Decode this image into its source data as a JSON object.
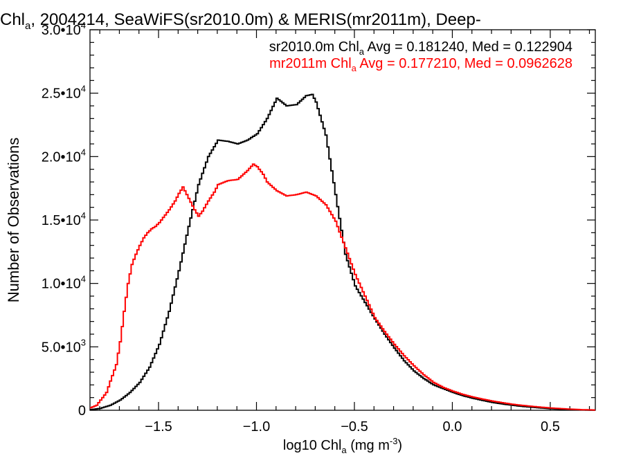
{
  "chart_data": {
    "type": "line",
    "title": {
      "prefix": "Chl",
      "sub": "a",
      "rest": ", 2004214, SeaWiFS(sr2010.0m) & MERIS(mr2011m), Deep-"
    },
    "xlabel": {
      "prefix": "log10 Chl",
      "sub": "a",
      "mid": " (mg m",
      "sup": "-3",
      "suffix": ")"
    },
    "ylabel": "Number of Observations",
    "xlim": [
      -1.85,
      0.73
    ],
    "ylim": [
      0,
      30000
    ],
    "grid": false,
    "legend_position": "top-right",
    "x_ticks": [
      {
        "value": -1.5,
        "label": "−1.5"
      },
      {
        "value": -1.0,
        "label": "−1.0"
      },
      {
        "value": -0.5,
        "label": "−0.5"
      },
      {
        "value": 0.0,
        "label": "0.0"
      },
      {
        "value": 0.5,
        "label": "0.5"
      }
    ],
    "y_ticks": [
      {
        "value": 0,
        "mantissa": "0",
        "exp": ""
      },
      {
        "value": 5000,
        "mantissa": "5.0•10",
        "exp": "3"
      },
      {
        "value": 10000,
        "mantissa": "1.0•10",
        "exp": "4"
      },
      {
        "value": 15000,
        "mantissa": "1.5•10",
        "exp": "4"
      },
      {
        "value": 20000,
        "mantissa": "2.0•10",
        "exp": "4"
      },
      {
        "value": 25000,
        "mantissa": "2.5•10",
        "exp": "4"
      },
      {
        "value": 30000,
        "mantissa": "3.0•10",
        "exp": "4"
      }
    ],
    "series": [
      {
        "name": "sr2010.0m",
        "color": "#000000",
        "legend": {
          "prefix": "sr2010.0m Chl",
          "sub": "a",
          "rest": " Avg = 0.181240, Med = 0.122904"
        },
        "x": [
          -1.85,
          -1.8,
          -1.75,
          -1.7,
          -1.65,
          -1.6,
          -1.55,
          -1.5,
          -1.45,
          -1.4,
          -1.35,
          -1.3,
          -1.25,
          -1.2,
          -1.15,
          -1.1,
          -1.05,
          -1.0,
          -0.95,
          -0.9,
          -0.85,
          -0.8,
          -0.75,
          -0.72,
          -0.7,
          -0.65,
          -0.6,
          -0.55,
          -0.5,
          -0.45,
          -0.4,
          -0.35,
          -0.3,
          -0.25,
          -0.2,
          -0.15,
          -0.1,
          -0.05,
          0.0,
          0.05,
          0.1,
          0.15,
          0.2,
          0.25,
          0.3,
          0.35,
          0.4,
          0.45,
          0.5,
          0.55,
          0.6,
          0.65,
          0.73
        ],
        "y": [
          50,
          150,
          400,
          800,
          1400,
          2200,
          3400,
          5200,
          7800,
          11000,
          14500,
          17800,
          20000,
          21300,
          21200,
          21000,
          21300,
          21800,
          23000,
          24600,
          24000,
          24100,
          24800,
          24900,
          24300,
          21700,
          17000,
          12300,
          9800,
          8500,
          7200,
          6000,
          4900,
          3900,
          3100,
          2500,
          2000,
          1700,
          1400,
          1150,
          950,
          780,
          620,
          500,
          400,
          310,
          240,
          180,
          120,
          80,
          50,
          30,
          10
        ]
      },
      {
        "name": "mr2011m",
        "color": "#ff0000",
        "legend": {
          "prefix": "mr2011m Chl",
          "sub": "a",
          "rest": " Avg = 0.177210, Med = 0.0962628"
        },
        "x": [
          -1.85,
          -1.82,
          -1.8,
          -1.77,
          -1.75,
          -1.72,
          -1.7,
          -1.68,
          -1.66,
          -1.64,
          -1.62,
          -1.6,
          -1.58,
          -1.56,
          -1.54,
          -1.52,
          -1.5,
          -1.45,
          -1.42,
          -1.4,
          -1.38,
          -1.37,
          -1.35,
          -1.32,
          -1.3,
          -1.28,
          -1.25,
          -1.22,
          -1.2,
          -1.15,
          -1.1,
          -1.05,
          -1.02,
          -1.0,
          -0.97,
          -0.95,
          -0.9,
          -0.85,
          -0.8,
          -0.75,
          -0.7,
          -0.65,
          -0.6,
          -0.55,
          -0.5,
          -0.45,
          -0.4,
          -0.35,
          -0.3,
          -0.25,
          -0.2,
          -0.15,
          -0.1,
          -0.05,
          0.0,
          0.05,
          0.1,
          0.15,
          0.2,
          0.25,
          0.3,
          0.35,
          0.4,
          0.45,
          0.5,
          0.55,
          0.6,
          0.65,
          0.73
        ],
        "y": [
          200,
          400,
          800,
          1400,
          2300,
          3600,
          5400,
          7800,
          10000,
          11500,
          12300,
          13000,
          13600,
          14000,
          14300,
          14500,
          14800,
          15800,
          16500,
          17100,
          17600,
          17300,
          16700,
          15800,
          15300,
          15700,
          16500,
          17200,
          17800,
          18100,
          18200,
          18900,
          19400,
          19200,
          18600,
          18000,
          17300,
          16900,
          17000,
          17200,
          16900,
          16200,
          14900,
          12800,
          10700,
          9000,
          7300,
          6200,
          5200,
          4300,
          3500,
          2800,
          2200,
          1800,
          1500,
          1250,
          1050,
          880,
          730,
          600,
          480,
          390,
          310,
          240,
          180,
          130,
          90,
          50,
          20
        ]
      }
    ]
  }
}
